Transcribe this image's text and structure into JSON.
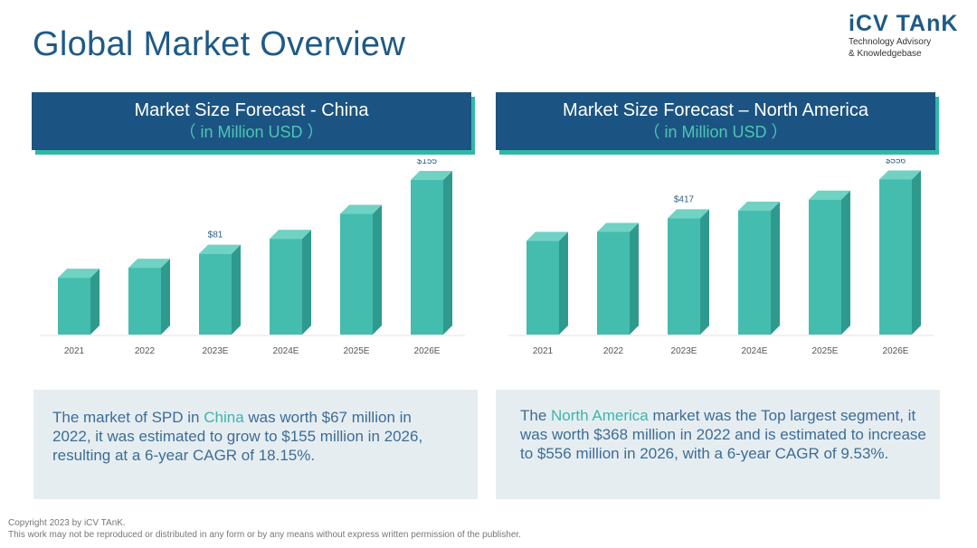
{
  "page": {
    "title": "Global Market Overview"
  },
  "logo": {
    "mark": "iCV TAnK",
    "line1": "Technology Advisory",
    "line2": "& Knowledgebase"
  },
  "colors": {
    "header": "#1b5482",
    "accent": "#31b7a6",
    "bar_front": "#44bcae",
    "bar_side": "#2e9a8d",
    "bar_top": "#6fd2c3"
  },
  "panels": [
    {
      "title": "Market Size Forecast - China",
      "unit": "（ in Million USD ）"
    },
    {
      "title": "Market Size Forecast – North America",
      "unit": "（ in Million USD ）"
    }
  ],
  "chart_data": [
    {
      "type": "bar",
      "title": "Market Size Forecast - China",
      "unit": "Million USD",
      "categories": [
        "2021",
        "2022",
        "2023E",
        "2024E",
        "2025E",
        "2026E"
      ],
      "values": [
        57,
        67,
        81,
        96,
        121,
        155
      ],
      "data_labels": [
        "",
        "",
        "$81",
        "",
        "",
        "$155"
      ],
      "ylim": [
        0,
        165
      ],
      "grid": false
    },
    {
      "type": "bar",
      "title": "Market Size Forecast – North America",
      "unit": "Million USD",
      "categories": [
        "2021",
        "2022",
        "2023E",
        "2024E",
        "2025E",
        "2026E"
      ],
      "values": [
        336,
        368,
        417,
        444,
        484,
        556
      ],
      "data_labels": [
        "",
        "",
        "$417",
        "",
        "",
        "$556"
      ],
      "ylim": [
        0,
        590
      ],
      "grid": false
    }
  ],
  "notes": [
    {
      "pre": "The market of SPD in ",
      "highlight": "China",
      "post": " was worth $67 million in 2022, it was estimated to grow to $155 million in 2026, resulting at a 6-year CAGR of 18.15%."
    },
    {
      "pre": "The ",
      "highlight": "North America",
      "post": " market was the Top largest segment, it was worth $368 million in 2022 and is estimated to increase to $556 million in 2026, with a 6-year CAGR of 9.53%."
    }
  ],
  "footer": {
    "line1": "Copyright  2023 by iCV TAnK.",
    "line2": "This work may not be reproduced or distributed in any form or by any means without express written permission of the publisher."
  }
}
